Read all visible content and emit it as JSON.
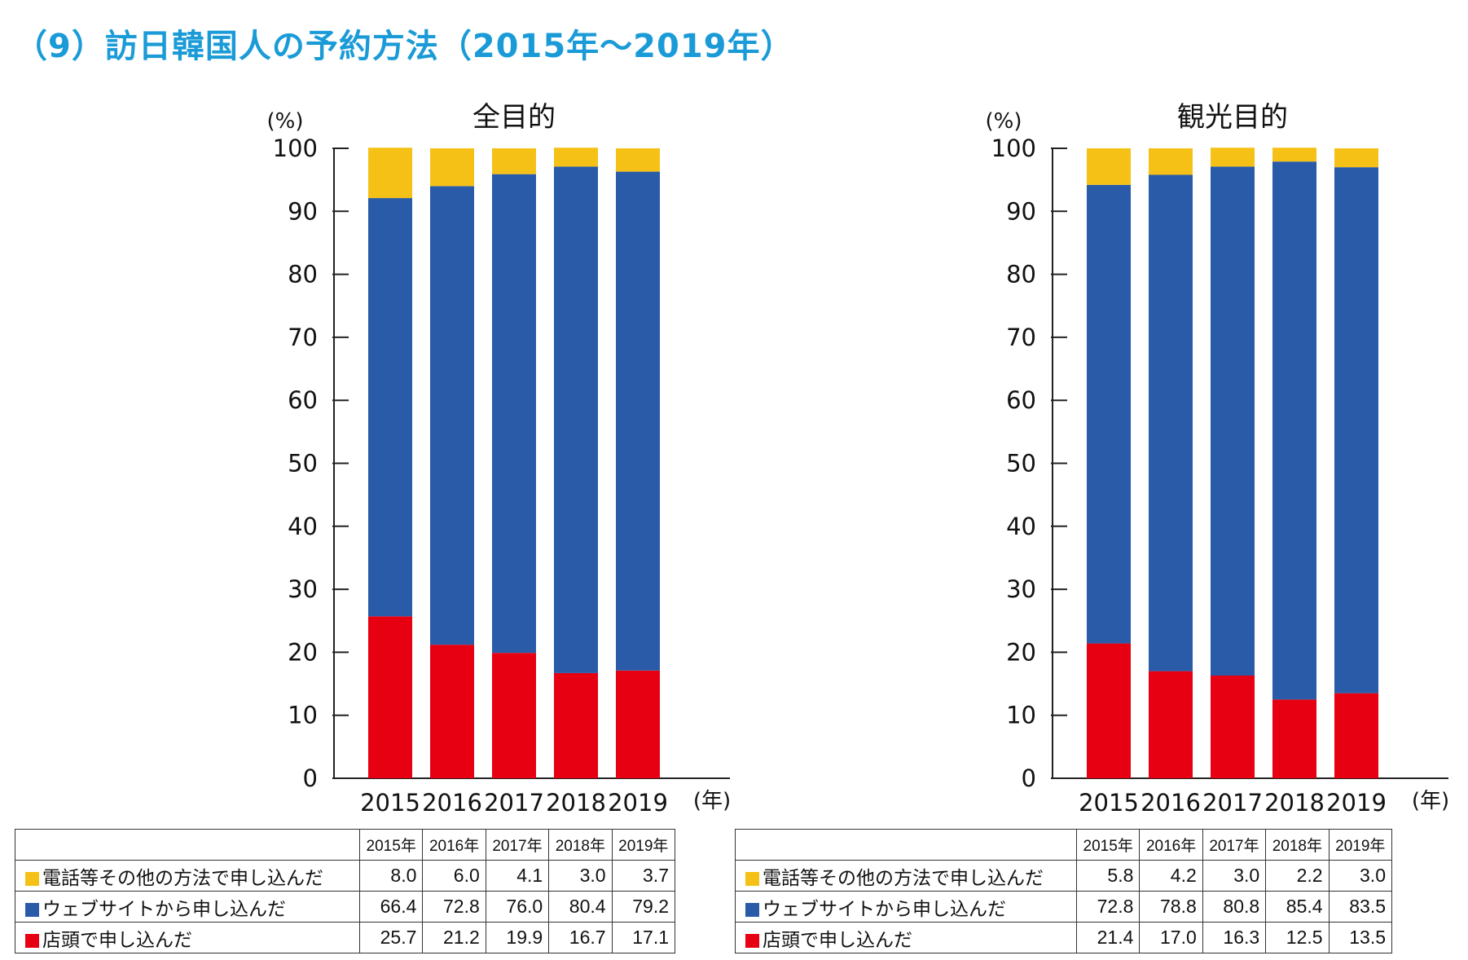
{
  "page": {
    "title": "（9）訪日韓国人の予約方法（2015年～2019年）",
    "title_color": "#1a9bd7"
  },
  "series_meta": [
    {
      "name": "電話等その他の方法で申し込んだ",
      "color": "#f5c117"
    },
    {
      "name": "ウェブサイトから申し込んだ",
      "color": "#2a5ba8"
    },
    {
      "name": "店頭で申し込んだ",
      "color": "#e60012"
    }
  ],
  "chart_data": [
    {
      "type": "bar",
      "stacked": true,
      "title": "全目的",
      "ylabel": "(%)",
      "xlabel": "(年)",
      "ylim": [
        0,
        100
      ],
      "yticks": [
        0,
        10,
        20,
        30,
        40,
        50,
        60,
        70,
        80,
        90,
        100
      ],
      "categories": [
        "2015",
        "2016",
        "2017",
        "2018",
        "2019"
      ],
      "series": [
        {
          "name": "店頭で申し込んだ",
          "values": [
            25.7,
            21.2,
            19.9,
            16.7,
            17.1
          ]
        },
        {
          "name": "ウェブサイトから申し込んだ",
          "values": [
            66.4,
            72.8,
            76.0,
            80.4,
            79.2
          ]
        },
        {
          "name": "電話等その他の方法で申し込んだ",
          "values": [
            8.0,
            6.0,
            4.1,
            3.0,
            3.7
          ]
        }
      ]
    },
    {
      "type": "bar",
      "stacked": true,
      "title": "観光目的",
      "ylabel": "(%)",
      "xlabel": "(年)",
      "ylim": [
        0,
        100
      ],
      "yticks": [
        0,
        10,
        20,
        30,
        40,
        50,
        60,
        70,
        80,
        90,
        100
      ],
      "categories": [
        "2015",
        "2016",
        "2017",
        "2018",
        "2019"
      ],
      "series": [
        {
          "name": "店頭で申し込んだ",
          "values": [
            21.4,
            17.0,
            16.3,
            12.5,
            13.5
          ]
        },
        {
          "name": "ウェブサイトから申し込んだ",
          "values": [
            72.8,
            78.8,
            80.8,
            85.4,
            83.5
          ]
        },
        {
          "name": "電話等その他の方法で申し込んだ",
          "values": [
            5.8,
            4.2,
            3.0,
            2.2,
            3.0
          ]
        }
      ]
    }
  ],
  "tables": [
    {
      "headers": [
        "2015年",
        "2016年",
        "2017年",
        "2018年",
        "2019年"
      ],
      "rows": [
        {
          "label": "電話等その他の方法で申し込んだ",
          "values": [
            "8.0",
            "6.0",
            "4.1",
            "3.0",
            "3.7"
          ]
        },
        {
          "label": "ウェブサイトから申し込んだ",
          "values": [
            "66.4",
            "72.8",
            "76.0",
            "80.4",
            "79.2"
          ]
        },
        {
          "label": "店頭で申し込んだ",
          "values": [
            "25.7",
            "21.2",
            "19.9",
            "16.7",
            "17.1"
          ]
        }
      ]
    },
    {
      "headers": [
        "2015年",
        "2016年",
        "2017年",
        "2018年",
        "2019年"
      ],
      "rows": [
        {
          "label": "電話等その他の方法で申し込んだ",
          "values": [
            "5.8",
            "4.2",
            "3.0",
            "2.2",
            "3.0"
          ]
        },
        {
          "label": "ウェブサイトから申し込んだ",
          "values": [
            "72.8",
            "78.8",
            "80.8",
            "85.4",
            "83.5"
          ]
        },
        {
          "label": "店頭で申し込んだ",
          "values": [
            "21.4",
            "17.0",
            "16.3",
            "12.5",
            "13.5"
          ]
        }
      ]
    }
  ]
}
